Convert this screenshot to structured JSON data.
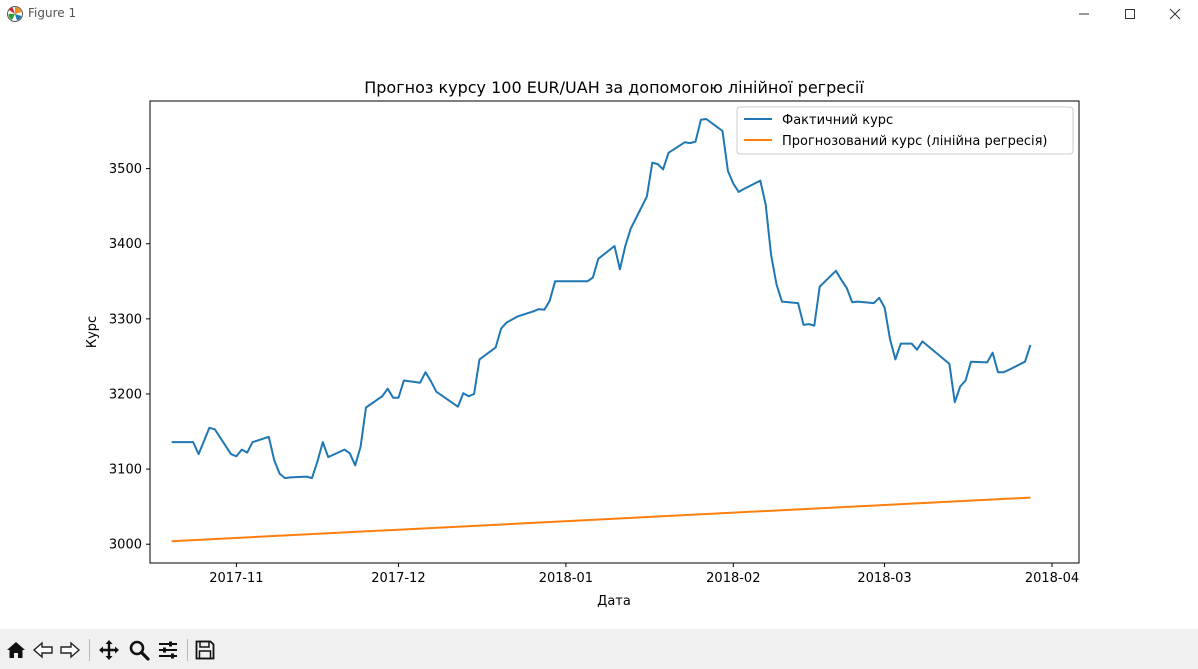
{
  "window": {
    "title": "Figure 1"
  },
  "toolbar": {
    "items": [
      "home-icon",
      "back-arrow-icon",
      "forward-arrow-icon",
      "pan-icon",
      "zoom-icon",
      "configure-subplots-icon",
      "save-icon"
    ]
  },
  "chart_data": {
    "type": "line",
    "title": "Прогноз курсу 100 EUR/UAH за допомогою лінійної регресії",
    "xlabel": "Дата",
    "ylabel": "Курс",
    "x_ticks": [
      "2017-11",
      "2017-12",
      "2018-01",
      "2018-02",
      "2018-03",
      "2018-04"
    ],
    "y_ticks": [
      "3000",
      "3100",
      "3200",
      "3300",
      "3400",
      "3500"
    ],
    "ylim": [
      2975,
      3590
    ],
    "xlim": [
      "2017-10-16",
      "2018-04-06"
    ],
    "legend": {
      "position": "top-right"
    },
    "colors": {
      "actual": "#1f77b4",
      "predicted": "#ff7f0e"
    },
    "series": [
      {
        "name": "Фактичний курс",
        "points": [
          [
            "2017-10-20",
            3136
          ],
          [
            "2017-10-23",
            3136
          ],
          [
            "2017-10-24",
            3136
          ],
          [
            "2017-10-25",
            3120
          ],
          [
            "2017-10-27",
            3155
          ],
          [
            "2017-10-28",
            3153
          ],
          [
            "2017-10-31",
            3120
          ],
          [
            "2017-11-01",
            3117
          ],
          [
            "2017-11-02",
            3126
          ],
          [
            "2017-11-03",
            3122
          ],
          [
            "2017-11-04",
            3136
          ],
          [
            "2017-11-07",
            3143
          ],
          [
            "2017-11-08",
            3112
          ],
          [
            "2017-11-09",
            3094
          ],
          [
            "2017-11-10",
            3088
          ],
          [
            "2017-11-11",
            3089
          ],
          [
            "2017-11-14",
            3090
          ],
          [
            "2017-11-15",
            3088
          ],
          [
            "2017-11-16",
            3110
          ],
          [
            "2017-11-17",
            3136
          ],
          [
            "2017-11-18",
            3116
          ],
          [
            "2017-11-21",
            3126
          ],
          [
            "2017-11-22",
            3121
          ],
          [
            "2017-11-23",
            3105
          ],
          [
            "2017-11-24",
            3130
          ],
          [
            "2017-11-25",
            3182
          ],
          [
            "2017-11-28",
            3197
          ],
          [
            "2017-11-29",
            3207
          ],
          [
            "2017-11-30",
            3195
          ],
          [
            "2017-12-01",
            3195
          ],
          [
            "2017-12-02",
            3218
          ],
          [
            "2017-12-05",
            3215
          ],
          [
            "2017-12-06",
            3229
          ],
          [
            "2017-12-07",
            3217
          ],
          [
            "2017-12-08",
            3203
          ],
          [
            "2017-12-12",
            3183
          ],
          [
            "2017-12-13",
            3201
          ],
          [
            "2017-12-14",
            3197
          ],
          [
            "2017-12-15",
            3200
          ],
          [
            "2017-12-16",
            3246
          ],
          [
            "2017-12-19",
            3262
          ],
          [
            "2017-12-20",
            3287
          ],
          [
            "2017-12-21",
            3295
          ],
          [
            "2017-12-23",
            3303
          ],
          [
            "2017-12-26",
            3310
          ],
          [
            "2017-12-27",
            3313
          ],
          [
            "2017-12-28",
            3312
          ],
          [
            "2017-12-29",
            3324
          ],
          [
            "2017-12-30",
            3350
          ],
          [
            "2018-01-03",
            3350
          ],
          [
            "2018-01-05",
            3350
          ],
          [
            "2018-01-06",
            3355
          ],
          [
            "2018-01-07",
            3380
          ],
          [
            "2018-01-10",
            3397
          ],
          [
            "2018-01-11",
            3366
          ],
          [
            "2018-01-12",
            3397
          ],
          [
            "2018-01-13",
            3420
          ],
          [
            "2018-01-16",
            3463
          ],
          [
            "2018-01-17",
            3508
          ],
          [
            "2018-01-18",
            3506
          ],
          [
            "2018-01-19",
            3499
          ],
          [
            "2018-01-20",
            3521
          ],
          [
            "2018-01-23",
            3535
          ],
          [
            "2018-01-24",
            3534
          ],
          [
            "2018-01-25",
            3536
          ],
          [
            "2018-01-26",
            3565
          ],
          [
            "2018-01-27",
            3566
          ],
          [
            "2018-01-30",
            3550
          ],
          [
            "2018-01-31",
            3497
          ],
          [
            "2018-02-01",
            3480
          ],
          [
            "2018-02-02",
            3469
          ],
          [
            "2018-02-03",
            3473
          ],
          [
            "2018-02-06",
            3484
          ],
          [
            "2018-02-07",
            3452
          ],
          [
            "2018-02-08",
            3385
          ],
          [
            "2018-02-09",
            3346
          ],
          [
            "2018-02-10",
            3323
          ],
          [
            "2018-02-13",
            3321
          ],
          [
            "2018-02-14",
            3292
          ],
          [
            "2018-02-15",
            3293
          ],
          [
            "2018-02-16",
            3291
          ],
          [
            "2018-02-17",
            3343
          ],
          [
            "2018-02-20",
            3364
          ],
          [
            "2018-02-21",
            3352
          ],
          [
            "2018-02-22",
            3341
          ],
          [
            "2018-02-23",
            3322
          ],
          [
            "2018-02-24",
            3323
          ],
          [
            "2018-02-27",
            3321
          ],
          [
            "2018-02-28",
            3328
          ],
          [
            "2018-03-01",
            3315
          ],
          [
            "2018-03-02",
            3273
          ],
          [
            "2018-03-03",
            3246
          ],
          [
            "2018-03-04",
            3267
          ],
          [
            "2018-03-06",
            3267
          ],
          [
            "2018-03-07",
            3259
          ],
          [
            "2018-03-08",
            3270
          ],
          [
            "2018-03-13",
            3240
          ],
          [
            "2018-03-14",
            3189
          ],
          [
            "2018-03-15",
            3210
          ],
          [
            "2018-03-16",
            3218
          ],
          [
            "2018-03-17",
            3243
          ],
          [
            "2018-03-20",
            3242
          ],
          [
            "2018-03-21",
            3255
          ],
          [
            "2018-03-22",
            3229
          ],
          [
            "2018-03-23",
            3229
          ],
          [
            "2018-03-24",
            3232
          ],
          [
            "2018-03-27",
            3243
          ],
          [
            "2018-03-28",
            3265
          ]
        ]
      },
      {
        "name": "Прогнозований курс (лінійна регресія)",
        "points": [
          [
            "2017-10-20",
            3004
          ],
          [
            "2018-03-28",
            3062
          ]
        ]
      }
    ]
  }
}
